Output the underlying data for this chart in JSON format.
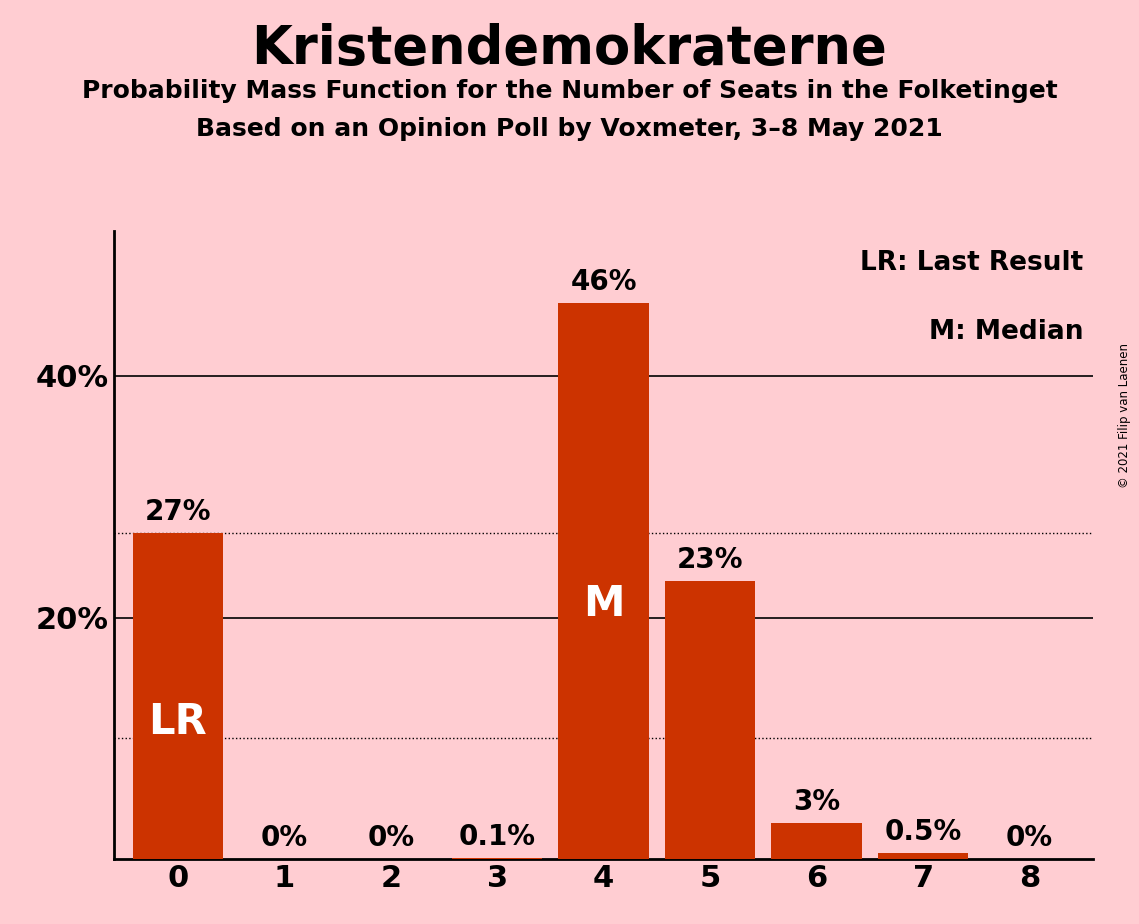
{
  "title": "Kristendemokraterne",
  "subtitle1": "Probability Mass Function for the Number of Seats in the Folketinget",
  "subtitle2": "Based on an Opinion Poll by Voxmeter, 3–8 May 2021",
  "copyright": "© 2021 Filip van Laenen",
  "categories": [
    0,
    1,
    2,
    3,
    4,
    5,
    6,
    7,
    8
  ],
  "values": [
    27,
    0,
    0,
    0.1,
    46,
    23,
    3,
    0.5,
    0
  ],
  "labels": [
    "27%",
    "0%",
    "0%",
    "0.1%",
    "46%",
    "23%",
    "3%",
    "0.5%",
    "0%"
  ],
  "bar_color": "#CC3300",
  "background_color": "#FFCDD2",
  "title_fontsize": 38,
  "subtitle_fontsize": 18,
  "label_fontsize": 20,
  "axis_fontsize": 22,
  "ylim": [
    0,
    52
  ],
  "lr_seat": 0,
  "median_seat": 4,
  "legend_text1": "LR: Last Result",
  "legend_text2": "M: Median",
  "dotted_lines": [
    27,
    10
  ],
  "solid_lines": [
    40,
    20
  ]
}
